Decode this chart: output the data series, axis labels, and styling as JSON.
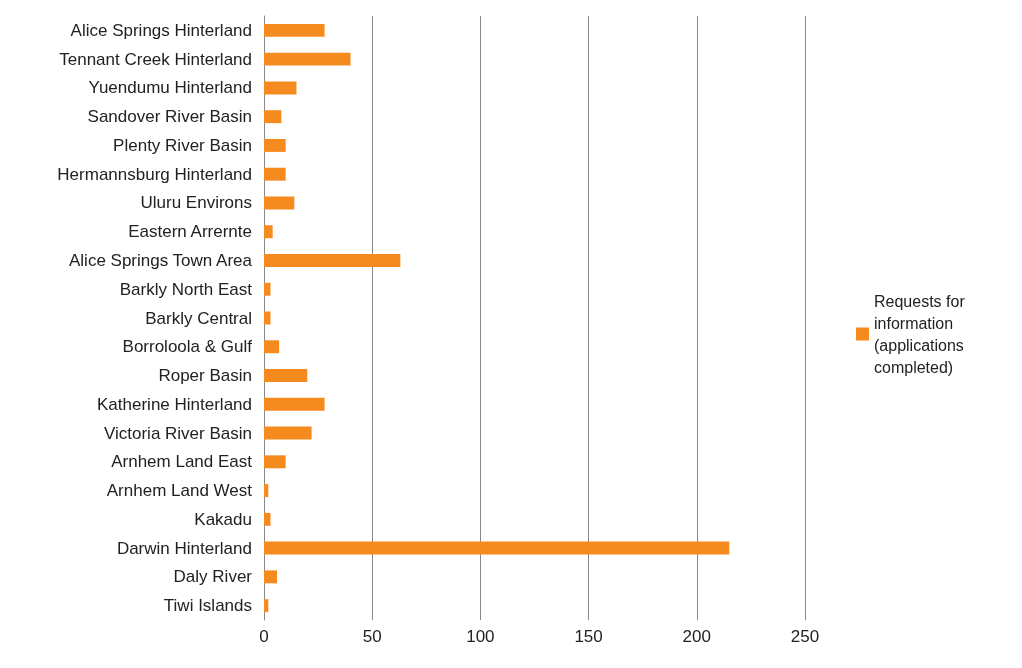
{
  "chart_data": {
    "type": "bar",
    "orientation": "horizontal",
    "categories": [
      "Alice Springs Hinterland",
      "Tennant Creek Hinterland",
      "Yuendumu Hinterland",
      "Sandover River Basin",
      "Plenty River Basin",
      "Hermannsburg Hinterland",
      "Uluru Environs",
      "Eastern Arrernte",
      "Alice Springs Town Area",
      "Barkly North East",
      "Barkly Central",
      "Borroloola & Gulf",
      "Roper Basin",
      "Katherine Hinterland",
      "Victoria River Basin",
      "Arnhem Land East",
      "Arnhem Land West",
      "Kakadu",
      "Darwin Hinterland",
      "Daly River",
      "Tiwi Islands"
    ],
    "series": [
      {
        "name": "Requests for information (applications completed)",
        "color": "#f58a1f",
        "values": [
          28,
          40,
          15,
          8,
          10,
          10,
          14,
          4,
          63,
          3,
          3,
          7,
          20,
          28,
          22,
          10,
          2,
          3,
          215,
          6,
          2
        ]
      }
    ],
    "xlim": [
      0,
      250
    ],
    "xticks": [
      0,
      50,
      100,
      150,
      200,
      250
    ],
    "grid": "x",
    "legend": "right"
  }
}
